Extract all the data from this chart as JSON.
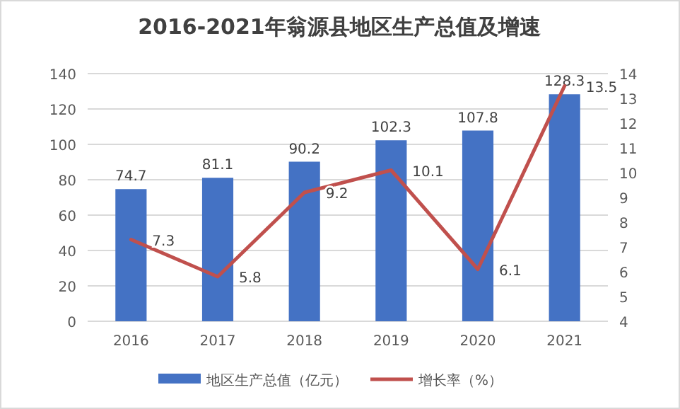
{
  "chart_data": {
    "type": "bar",
    "title": "2016-2021年翁源县地区生产总值及增速",
    "categories": [
      "2016",
      "2017",
      "2018",
      "2019",
      "2020",
      "2021"
    ],
    "series": [
      {
        "name": "地区生产总值（亿元）",
        "color": "#4472c4",
        "values": [
          74.7,
          81.1,
          90.2,
          102.3,
          107.8,
          128.3
        ]
      },
      {
        "name": "增长率（%）",
        "type": "line",
        "axis": "y2",
        "color": "#c0504d",
        "values": [
          7.3,
          5.8,
          9.2,
          10.1,
          6.1,
          13.5
        ]
      }
    ],
    "ylim": [
      0,
      140
    ],
    "yticks": [
      0,
      20,
      40,
      60,
      80,
      100,
      120,
      140
    ],
    "y2lim": [
      4,
      14
    ],
    "y2ticks": [
      4,
      5,
      6,
      7,
      8,
      9,
      10,
      11,
      12,
      13,
      14
    ],
    "grid": "y",
    "legend": "bottom",
    "data_labels": true
  }
}
